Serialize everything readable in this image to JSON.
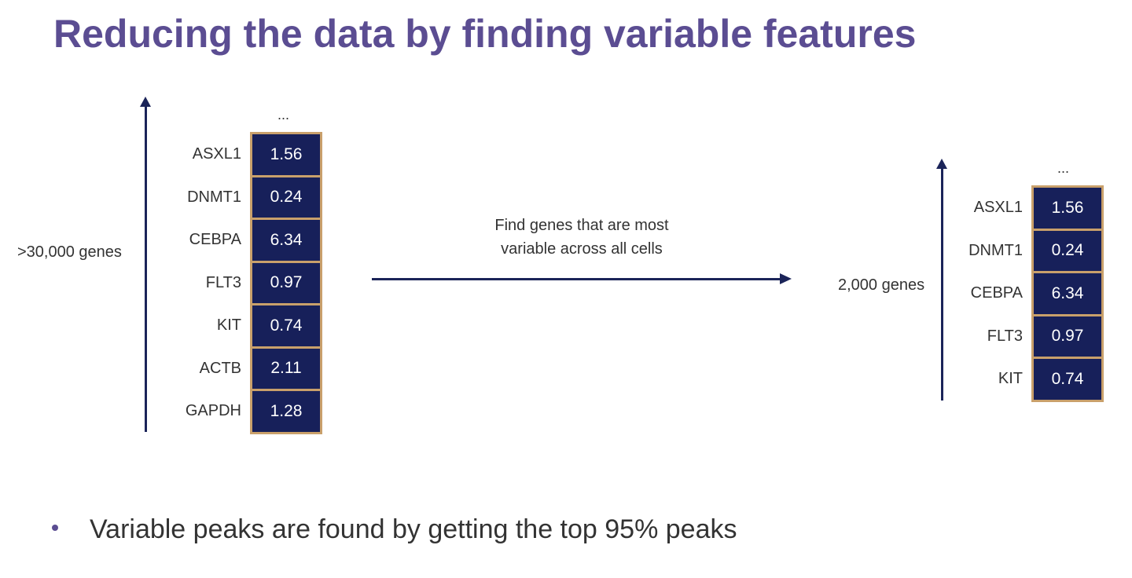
{
  "title": "Reducing the data by finding variable features",
  "left": {
    "label": ">30,000 genes",
    "ellipsis": "...",
    "genes": [
      {
        "name": "ASXL1",
        "value": "1.56"
      },
      {
        "name": "DNMT1",
        "value": "0.24"
      },
      {
        "name": "CEBPA",
        "value": "6.34"
      },
      {
        "name": "FLT3",
        "value": "0.97"
      },
      {
        "name": "KIT",
        "value": "0.74"
      },
      {
        "name": "ACTB",
        "value": "2.11"
      },
      {
        "name": "GAPDH",
        "value": "1.28"
      }
    ]
  },
  "middle": {
    "caption_line1": "Find genes that are most",
    "caption_line2": "variable across all cells"
  },
  "right": {
    "label": "2,000 genes",
    "ellipsis": "...",
    "genes": [
      {
        "name": "ASXL1",
        "value": "1.56"
      },
      {
        "name": "DNMT1",
        "value": "0.24"
      },
      {
        "name": "CEBPA",
        "value": "6.34"
      },
      {
        "name": "FLT3",
        "value": "0.97"
      },
      {
        "name": "KIT",
        "value": "0.74"
      }
    ]
  },
  "bullet": "Variable peaks are found by getting the top 95% peaks",
  "colors": {
    "title": "#5b4d92",
    "cell_fill": "#17205a",
    "cell_border": "#c9a06b",
    "arrow": "#1b2459"
  }
}
